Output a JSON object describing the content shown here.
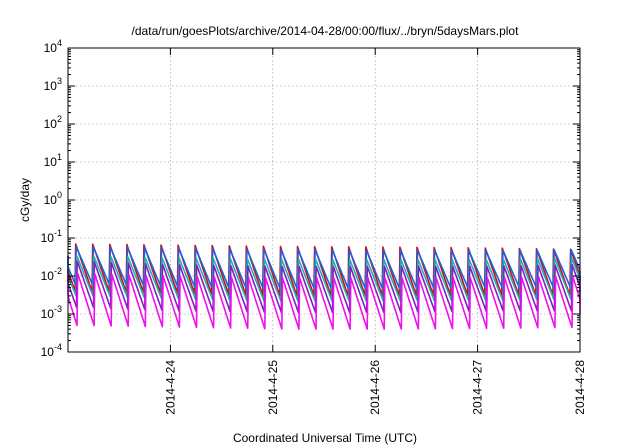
{
  "chart_data": {
    "type": "line",
    "title": "/data/run/goesPlots/archive/2014-04-28/00:00/flux/../bryn/5daysMars.plot",
    "xlabel": "Coordinated Universal Time (UTC)",
    "ylabel": "cGy/day",
    "x_range": [
      "2014-04-23T00:00",
      "2014-04-28T00:00"
    ],
    "y_scale": "log",
    "ylim": [
      0.0001,
      10000
    ],
    "grid": true,
    "y_ticks": [
      {
        "base": "10",
        "exp": "-4",
        "value": 0.0001
      },
      {
        "base": "10",
        "exp": "-3",
        "value": 0.001
      },
      {
        "base": "10",
        "exp": "-2",
        "value": 0.01
      },
      {
        "base": "10",
        "exp": "-1",
        "value": 0.1
      },
      {
        "base": "10",
        "exp": "0",
        "value": 1
      },
      {
        "base": "10",
        "exp": "1",
        "value": 10
      },
      {
        "base": "10",
        "exp": "2",
        "value": 100
      },
      {
        "base": "10",
        "exp": "3",
        "value": 1000
      },
      {
        "base": "10",
        "exp": "4",
        "value": 10000
      }
    ],
    "x_ticks": [
      "2014-4-24",
      "2014-4-25",
      "2014-4-26",
      "2014-4-27",
      "2014-4-28"
    ],
    "series": [
      {
        "color": "#d01010",
        "peaks": [
          0.07,
          0.065,
          0.06,
          0.058,
          0.055,
          0.05
        ],
        "lows": [
          0.004,
          0.0035,
          0.003,
          0.003,
          0.0032,
          0.003
        ]
      },
      {
        "color": "#2060e0",
        "peaks": [
          0.06,
          0.055,
          0.05,
          0.048,
          0.047,
          0.05
        ],
        "lows": [
          0.006,
          0.005,
          0.0045,
          0.0045,
          0.005,
          0.005
        ]
      },
      {
        "color": "#20b0b0",
        "peaks": [
          0.035,
          0.03,
          0.028,
          0.027,
          0.027,
          0.03
        ],
        "lows": [
          0.003,
          0.0025,
          0.0022,
          0.0022,
          0.0023,
          0.0025
        ]
      },
      {
        "color": "#8020c0",
        "peaks": [
          0.025,
          0.02,
          0.018,
          0.018,
          0.018,
          0.02
        ],
        "lows": [
          0.0015,
          0.0012,
          0.0011,
          0.0011,
          0.0012,
          0.0012
        ]
      },
      {
        "color": "#ee10ee",
        "peaks": [
          0.012,
          0.01,
          0.009,
          0.009,
          0.009,
          0.01
        ],
        "lows": [
          0.0005,
          0.00045,
          0.0004,
          0.0004,
          0.00042,
          0.00045
        ]
      }
    ]
  }
}
